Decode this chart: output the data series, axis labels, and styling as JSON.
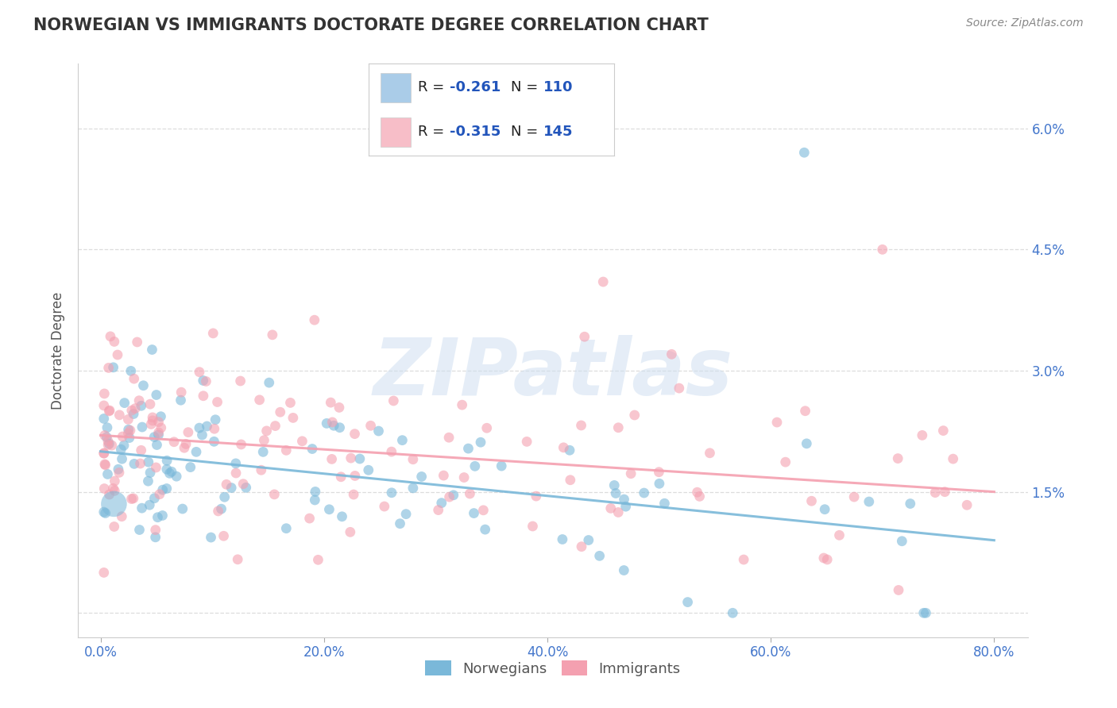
{
  "title": "NORWEGIAN VS IMMIGRANTS DOCTORATE DEGREE CORRELATION CHART",
  "source": "Source: ZipAtlas.com",
  "ylabel_label": "Doctorate Degree",
  "xlim": [
    0.0,
    80.0
  ],
  "ylim": [
    0.0,
    6.5
  ],
  "norwegians_color": "#7ab8d9",
  "immigrants_color": "#f4a0b0",
  "legend_nor_color": "#aacce8",
  "legend_imm_color": "#f7bec8",
  "R_norwegian": -0.261,
  "N_norwegian": 110,
  "R_immigrant": -0.315,
  "N_immigrant": 145,
  "title_color": "#333333",
  "axis_label_color": "#555555",
  "tick_color": "#4477cc",
  "watermark": "ZIPatlas",
  "background_color": "#ffffff",
  "grid_color": "#dddddd",
  "legend_text_color": "#2255bb"
}
